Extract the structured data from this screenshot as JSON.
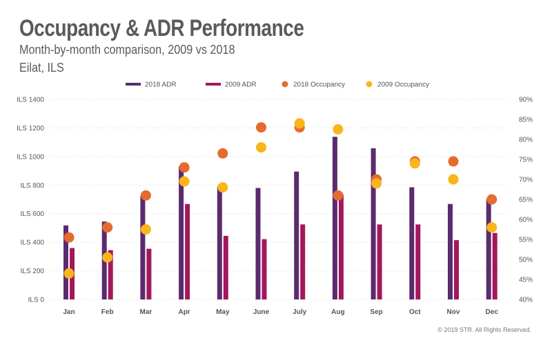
{
  "header": {
    "title": "Occupancy & ADR Performance",
    "subtitle": "Month-by-month comparison, 2009 vs 2018",
    "location": "Eilat, ILS"
  },
  "footer": {
    "copyright": "© 2019 STR. All Rights Reserved."
  },
  "colors": {
    "adr_2018": "#5c2a6e",
    "adr_2009": "#a3185c",
    "occ_2018": "#e56b2f",
    "occ_2009": "#f9b51b",
    "text": "#555555",
    "grid": "#dddddd"
  },
  "chart_data": {
    "type": "bar",
    "title": "Occupancy & ADR Performance",
    "categories": [
      "Jan",
      "Feb",
      "Mar",
      "Apr",
      "May",
      "June",
      "July",
      "Aug",
      "Sep",
      "Oct",
      "Nov",
      "Dec"
    ],
    "series": [
      {
        "name": "2018 ADR",
        "kind": "bar",
        "axis": "left",
        "values": [
          518,
          545,
          725,
          932,
          790,
          780,
          895,
          1138,
          1058,
          785,
          668,
          702
        ]
      },
      {
        "name": "2009 ADR",
        "kind": "bar",
        "axis": "left",
        "values": [
          360,
          345,
          355,
          668,
          445,
          422,
          525,
          735,
          525,
          525,
          415,
          465
        ]
      },
      {
        "name": "2018 Occupancy",
        "kind": "dot",
        "axis": "right",
        "values": [
          55.5,
          58,
          66,
          73,
          76.5,
          83,
          83,
          66,
          70,
          74.5,
          74.5,
          65
        ]
      },
      {
        "name": "2009 Occupancy",
        "kind": "dot",
        "axis": "right",
        "values": [
          46.5,
          50.5,
          57.5,
          69.5,
          68,
          78,
          84,
          82.5,
          69,
          74,
          70,
          58
        ]
      }
    ],
    "left_axis": {
      "min": 0,
      "max": 1400,
      "step": 200,
      "tick_labels": [
        "ILS 0",
        "ILS 200",
        "ILS 400",
        "ILS 600",
        "ILS 800",
        "ILS 1000",
        "ILS 1200",
        "ILS 1400"
      ]
    },
    "right_axis": {
      "min": 40,
      "max": 90,
      "step": 5,
      "tick_labels": [
        "40%",
        "45%",
        "50%",
        "55%",
        "60%",
        "65%",
        "70%",
        "75%",
        "80%",
        "85%",
        "90%"
      ]
    },
    "legend_position": "top-center",
    "grid": true
  }
}
